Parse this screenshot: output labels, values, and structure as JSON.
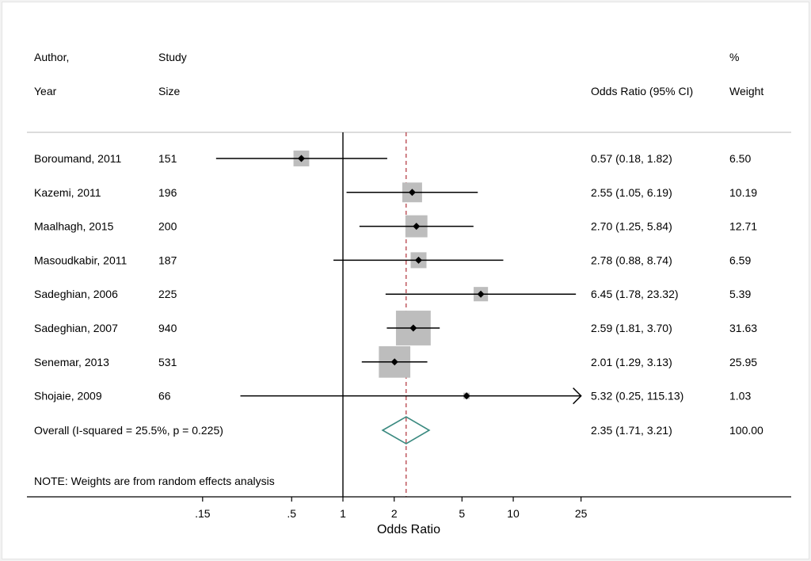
{
  "chart_data": {
    "type": "forest",
    "headers": {
      "author_1": "Author,",
      "author_2": "Year",
      "size_1": "Study",
      "size_2": "Size",
      "or": "Odds Ratio (95% CI)",
      "weight_1": "%",
      "weight_2": "Weight"
    },
    "studies": [
      {
        "label": "Boroumand, 2011",
        "size": "151",
        "or": 0.57,
        "lo": 0.18,
        "hi": 1.82,
        "ci_text": "0.57 (0.18, 1.82)",
        "weight": 6.5,
        "weight_text": "6.50"
      },
      {
        "label": "Kazemi, 2011",
        "size": "196",
        "or": 2.55,
        "lo": 1.05,
        "hi": 6.19,
        "ci_text": "2.55 (1.05, 6.19)",
        "weight": 10.19,
        "weight_text": "10.19"
      },
      {
        "label": "Maalhagh, 2015",
        "size": "200",
        "or": 2.7,
        "lo": 1.25,
        "hi": 5.84,
        "ci_text": "2.70 (1.25, 5.84)",
        "weight": 12.71,
        "weight_text": "12.71"
      },
      {
        "label": "Masoudkabir, 2011",
        "size": "187",
        "or": 2.78,
        "lo": 0.88,
        "hi": 8.74,
        "ci_text": "2.78 (0.88, 8.74)",
        "weight": 6.59,
        "weight_text": "6.59"
      },
      {
        "label": "Sadeghian, 2006",
        "size": "225",
        "or": 6.45,
        "lo": 1.78,
        "hi": 23.32,
        "ci_text": "6.45 (1.78, 23.32)",
        "weight": 5.39,
        "weight_text": "5.39"
      },
      {
        "label": "Sadeghian, 2007",
        "size": "940",
        "or": 2.59,
        "lo": 1.81,
        "hi": 3.7,
        "ci_text": "2.59 (1.81, 3.70)",
        "weight": 31.63,
        "weight_text": "31.63"
      },
      {
        "label": "Senemar, 2013",
        "size": "531",
        "or": 2.01,
        "lo": 1.29,
        "hi": 3.13,
        "ci_text": "2.01 (1.29, 3.13)",
        "weight": 25.95,
        "weight_text": "25.95"
      },
      {
        "label": "Shojaie, 2009",
        "size": "66",
        "or": 5.32,
        "lo": 0.25,
        "hi": 115.13,
        "ci_text": "5.32 (0.25, 115.13)",
        "weight": 1.03,
        "weight_text": "1.03"
      }
    ],
    "overall": {
      "label": "Overall  (I-squared = 25.5%, p = 0.225)",
      "or": 2.35,
      "lo": 1.71,
      "hi": 3.21,
      "ci_text": "2.35 (1.71, 3.21)",
      "weight_text": "100.00"
    },
    "note": "NOTE: Weights are from random effects analysis",
    "xlabel": "Odds Ratio",
    "x_scale": "log",
    "x_ticks": [
      {
        "value": 0.15,
        "label": ".15"
      },
      {
        "value": 0.5,
        "label": ".5"
      },
      {
        "value": 1,
        "label": "1"
      },
      {
        "value": 2,
        "label": "2"
      },
      {
        "value": 5,
        "label": "5"
      },
      {
        "value": 10,
        "label": "10"
      },
      {
        "value": 25,
        "label": "25"
      }
    ],
    "xlim": [
      0.15,
      25
    ],
    "null_line": 1,
    "colors": {
      "box": "#bdbdbd",
      "overall_diamond": "#3b8a80",
      "overall_line": "#b03038",
      "rule": "#c8c8c8"
    }
  }
}
